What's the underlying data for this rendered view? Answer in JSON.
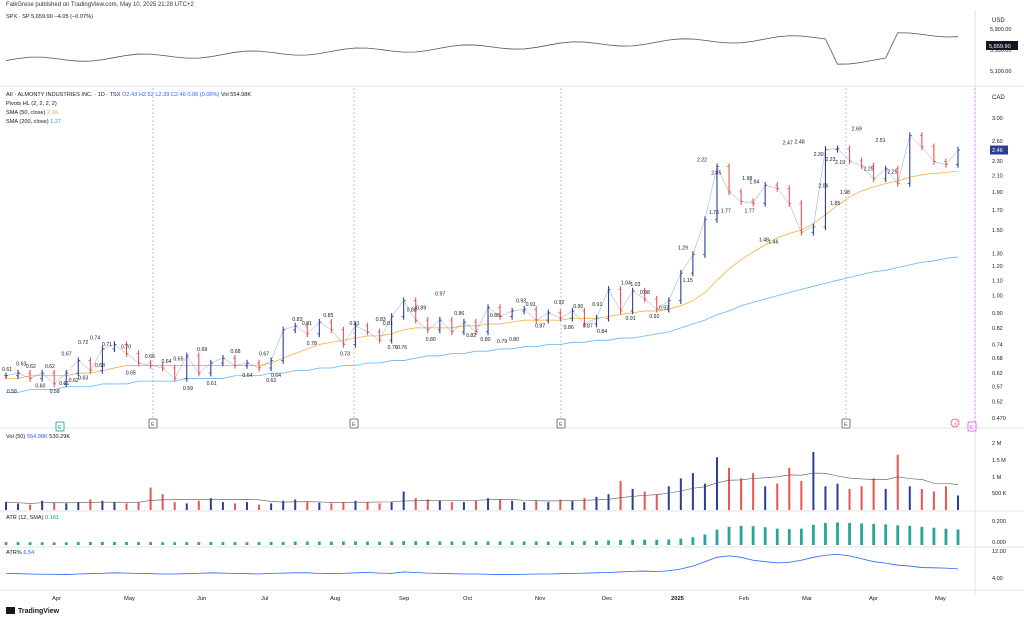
{
  "header": {
    "publisher": "FalkGrese published on TradingView.com, May 10, 2025 21:28 UTC+2"
  },
  "spx": {
    "label": "SPX · SP",
    "value": "5,659.90",
    "change": "−4.05 (−0.07%)",
    "currency": "USD",
    "y_ticks": [
      "5,900.00",
      "5,500.00",
      "5,100.00"
    ],
    "price_tag": "5,659.90"
  },
  "main": {
    "symbol": "AII · ALMONTY INDUSTRIES INC. · 1D · TSX",
    "ohlc": "O2.43  H2.52  L2.39  C2.46  0.00 (0.00%)",
    "vol": "Vol 554.98K",
    "pivots": "Pivots HL (2, 2, 2, 2)",
    "sma50": "SMA (50, close)",
    "sma50_val": "2.16",
    "sma200": "SMA (200, close)",
    "sma200_val": "1.27",
    "currency": "CAD",
    "price_tag": "2.46",
    "last": 2.46,
    "y_ticks": [
      3.0,
      2.6,
      2.3,
      2.1,
      1.9,
      1.7,
      1.5,
      1.3,
      1.2,
      1.1,
      1.0,
      0.9,
      0.82,
      0.74,
      0.68,
      0.62,
      0.57,
      0.52,
      0.47
    ],
    "y_tick_labels": [
      "3.00",
      "2.60",
      "2.30",
      "2.10",
      "1.90",
      "1.70",
      "1.50",
      "1.30",
      "1.20",
      "1.10",
      "1.00",
      "0.90",
      "0.82",
      "0.74",
      "0.68",
      "0.62",
      "0.57",
      "0.52",
      "0.470"
    ]
  },
  "chart_data": {
    "type": "line",
    "title": "AII · ALMONTY INDUSTRIES INC. · 1D · TSX",
    "x_labels": [
      "Apr",
      "May",
      "Jun",
      "Jul",
      "Aug",
      "Sep",
      "Oct",
      "Nov",
      "Dec",
      "2025",
      "Feb",
      "Mar",
      "Apr",
      "May"
    ],
    "x": [
      0,
      6,
      12,
      17,
      22,
      27,
      32,
      37,
      42,
      47,
      52,
      57,
      62,
      67,
      72,
      77,
      82,
      87,
      92,
      97,
      102,
      107,
      112,
      117,
      122,
      127,
      132,
      137,
      142,
      147,
      152,
      157,
      162,
      167,
      172,
      177,
      182,
      187,
      192,
      197,
      202,
      207,
      212,
      217,
      222,
      227,
      232,
      237,
      242,
      247,
      252,
      257,
      262,
      267,
      272,
      277,
      282,
      287,
      292,
      297,
      302,
      307,
      312,
      317,
      322,
      327,
      332,
      337,
      342,
      347,
      352,
      357,
      362,
      367,
      372,
      377,
      382,
      387,
      392,
      397
    ],
    "log_scale": true,
    "series": [
      {
        "name": "AII",
        "color": "#2a3f94",
        "values": [
          0.61,
          0.62,
          0.6,
          0.62,
          0.58,
          0.62,
          0.67,
          0.63,
          0.72,
          0.74,
          0.7,
          0.66,
          0.65,
          0.64,
          0.6,
          0.69,
          0.62,
          0.66,
          0.68,
          0.65,
          0.66,
          0.64,
          0.67,
          0.81,
          0.83,
          0.79,
          0.85,
          0.81,
          0.74,
          0.83,
          0.8,
          0.76,
          0.88,
          0.97,
          0.86,
          0.81,
          0.86,
          0.8,
          0.85,
          0.8,
          0.93,
          0.88,
          0.91,
          0.92,
          0.86,
          0.9,
          0.87,
          0.91,
          0.84,
          0.87,
          1.04,
          0.91,
          1.03,
          0.98,
          0.92,
          0.97,
          1.15,
          1.29,
          1.6,
          2.22,
          1.9,
          1.79,
          1.77,
          1.98,
          1.94,
          1.77,
          1.48,
          1.53,
          2.47,
          2.48,
          2.3,
          2.23,
          2.06,
          2.19,
          2.0,
          2.69,
          2.51,
          2.29,
          2.25,
          2.46
        ]
      },
      {
        "name": "SMA (50, close)",
        "color": "#f5a623",
        "values": [
          0.6,
          0.6,
          0.61,
          0.61,
          0.61,
          0.61,
          0.62,
          0.62,
          0.63,
          0.64,
          0.65,
          0.65,
          0.65,
          0.65,
          0.65,
          0.65,
          0.65,
          0.65,
          0.65,
          0.65,
          0.65,
          0.65,
          0.66,
          0.68,
          0.7,
          0.72,
          0.74,
          0.75,
          0.76,
          0.77,
          0.78,
          0.78,
          0.79,
          0.81,
          0.82,
          0.82,
          0.82,
          0.82,
          0.83,
          0.83,
          0.84,
          0.84,
          0.85,
          0.86,
          0.86,
          0.86,
          0.86,
          0.87,
          0.87,
          0.87,
          0.88,
          0.89,
          0.9,
          0.91,
          0.91,
          0.92,
          0.94,
          0.97,
          1.02,
          1.1,
          1.18,
          1.25,
          1.31,
          1.37,
          1.43,
          1.47,
          1.5,
          1.56,
          1.65,
          1.75,
          1.84,
          1.91,
          1.96,
          2.0,
          2.03,
          2.08,
          2.11,
          2.13,
          2.14,
          2.16
        ]
      },
      {
        "name": "SMA (200, close)",
        "color": "#64b5f6",
        "values": [
          0.55,
          0.55,
          0.56,
          0.56,
          0.56,
          0.57,
          0.57,
          0.57,
          0.58,
          0.58,
          0.58,
          0.59,
          0.59,
          0.59,
          0.59,
          0.6,
          0.6,
          0.6,
          0.6,
          0.61,
          0.61,
          0.61,
          0.62,
          0.62,
          0.63,
          0.63,
          0.64,
          0.64,
          0.65,
          0.65,
          0.66,
          0.66,
          0.67,
          0.67,
          0.68,
          0.69,
          0.69,
          0.7,
          0.7,
          0.71,
          0.71,
          0.72,
          0.72,
          0.73,
          0.73,
          0.74,
          0.74,
          0.75,
          0.75,
          0.76,
          0.76,
          0.77,
          0.77,
          0.78,
          0.79,
          0.8,
          0.82,
          0.84,
          0.86,
          0.89,
          0.91,
          0.94,
          0.96,
          0.98,
          1.0,
          1.02,
          1.04,
          1.06,
          1.08,
          1.1,
          1.12,
          1.14,
          1.16,
          1.17,
          1.19,
          1.21,
          1.23,
          1.24,
          1.26,
          1.27
        ]
      }
    ],
    "pivot_labels": [
      {
        "x": 0,
        "price": 0.61,
        "side": "above",
        "text": "0.61"
      },
      {
        "x": 2,
        "price": 0.58,
        "side": "below",
        "text": "0.58"
      },
      {
        "x": 6,
        "price": 0.63,
        "side": "above",
        "text": "0.63"
      },
      {
        "x": 10,
        "price": 0.62,
        "side": "above",
        "text": "0.62"
      },
      {
        "x": 14,
        "price": 0.6,
        "side": "below",
        "text": "0.60"
      },
      {
        "x": 18,
        "price": 0.62,
        "side": "above",
        "text": "0.62"
      },
      {
        "x": 20,
        "price": 0.58,
        "side": "below",
        "text": "0.58"
      },
      {
        "x": 25,
        "price": 0.67,
        "side": "above",
        "text": "0.67"
      },
      {
        "x": 24,
        "price": 0.61,
        "side": "below",
        "text": "0.61"
      },
      {
        "x": 28,
        "price": 0.62,
        "side": "below",
        "text": "0.62"
      },
      {
        "x": 32,
        "price": 0.72,
        "side": "above",
        "text": "0.72"
      },
      {
        "x": 32,
        "price": 0.63,
        "side": "below",
        "text": "0.63"
      },
      {
        "x": 37,
        "price": 0.74,
        "side": "above",
        "text": "0.74"
      },
      {
        "x": 39,
        "price": 0.68,
        "side": "below",
        "text": "0.68"
      },
      {
        "x": 42,
        "price": 0.71,
        "side": "above",
        "text": "0.71"
      },
      {
        "x": 50,
        "price": 0.7,
        "side": "above",
        "text": "0.70"
      },
      {
        "x": 52,
        "price": 0.65,
        "side": "below",
        "text": "0.65"
      },
      {
        "x": 60,
        "price": 0.66,
        "side": "above",
        "text": "0.66"
      },
      {
        "x": 67,
        "price": 0.64,
        "side": "above",
        "text": "0.64"
      },
      {
        "x": 72,
        "price": 0.65,
        "side": "above",
        "text": "0.65"
      },
      {
        "x": 76,
        "price": 0.59,
        "side": "below",
        "text": "0.59"
      },
      {
        "x": 82,
        "price": 0.69,
        "side": "above",
        "text": "0.69"
      },
      {
        "x": 86,
        "price": 0.61,
        "side": "below",
        "text": "0.61"
      },
      {
        "x": 96,
        "price": 0.68,
        "side": "above",
        "text": "0.68"
      },
      {
        "x": 101,
        "price": 0.64,
        "side": "below",
        "text": "0.64"
      },
      {
        "x": 108,
        "price": 0.67,
        "side": "above",
        "text": "0.67"
      },
      {
        "x": 111,
        "price": 0.62,
        "side": "below",
        "text": "0.62"
      },
      {
        "x": 113,
        "price": 0.64,
        "side": "below",
        "text": "0.64"
      },
      {
        "x": 122,
        "price": 0.83,
        "side": "above",
        "text": "0.83"
      },
      {
        "x": 126,
        "price": 0.81,
        "side": "above",
        "text": "0.81"
      },
      {
        "x": 128,
        "price": 0.78,
        "side": "below",
        "text": "0.78"
      },
      {
        "x": 135,
        "price": 0.85,
        "side": "above",
        "text": "0.85"
      },
      {
        "x": 142,
        "price": 0.73,
        "side": "below",
        "text": "0.73"
      },
      {
        "x": 146,
        "price": 0.81,
        "side": "above",
        "text": "0.81"
      },
      {
        "x": 157,
        "price": 0.83,
        "side": "above",
        "text": "0.83"
      },
      {
        "x": 160,
        "price": 0.81,
        "side": "above",
        "text": "0.81"
      },
      {
        "x": 162,
        "price": 0.76,
        "side": "below",
        "text": "0.76"
      },
      {
        "x": 166,
        "price": 0.76,
        "side": "below",
        "text": "0.76"
      },
      {
        "x": 170,
        "price": 0.88,
        "side": "above",
        "text": "0.88"
      },
      {
        "x": 174,
        "price": 0.89,
        "side": "above",
        "text": "0.89"
      },
      {
        "x": 178,
        "price": 0.8,
        "side": "below",
        "text": "0.80"
      },
      {
        "x": 182,
        "price": 0.97,
        "side": "above",
        "text": "0.97"
      },
      {
        "x": 190,
        "price": 0.86,
        "side": "above",
        "text": "0.86"
      },
      {
        "x": 195,
        "price": 0.82,
        "side": "below",
        "text": "0.82"
      },
      {
        "x": 201,
        "price": 0.8,
        "side": "below",
        "text": "0.80"
      },
      {
        "x": 205,
        "price": 0.85,
        "side": "above",
        "text": "0.85"
      },
      {
        "x": 208,
        "price": 0.79,
        "side": "below",
        "text": "0.79"
      },
      {
        "x": 213,
        "price": 0.8,
        "side": "below",
        "text": "0.80"
      },
      {
        "x": 216,
        "price": 0.93,
        "side": "above",
        "text": "0.93"
      },
      {
        "x": 220,
        "price": 0.91,
        "side": "above",
        "text": "0.91"
      },
      {
        "x": 224,
        "price": 0.87,
        "side": "below",
        "text": "0.87"
      },
      {
        "x": 232,
        "price": 0.92,
        "side": "above",
        "text": "0.92"
      },
      {
        "x": 236,
        "price": 0.86,
        "side": "below",
        "text": "0.86"
      },
      {
        "x": 240,
        "price": 0.9,
        "side": "above",
        "text": "0.90"
      },
      {
        "x": 244,
        "price": 0.87,
        "side": "below",
        "text": "0.87"
      },
      {
        "x": 248,
        "price": 0.91,
        "side": "above",
        "text": "0.91"
      },
      {
        "x": 250,
        "price": 0.84,
        "side": "below",
        "text": "0.84"
      },
      {
        "x": 260,
        "price": 1.04,
        "side": "above",
        "text": "1.04"
      },
      {
        "x": 264,
        "price": 1.03,
        "side": "above",
        "text": "1.03"
      },
      {
        "x": 262,
        "price": 0.91,
        "side": "below",
        "text": "0.91"
      },
      {
        "x": 268,
        "price": 0.98,
        "side": "above",
        "text": "0.98"
      },
      {
        "x": 272,
        "price": 0.92,
        "side": "below",
        "text": "0.92"
      },
      {
        "x": 276,
        "price": 0.97,
        "side": "below",
        "text": "0.97"
      },
      {
        "x": 286,
        "price": 1.15,
        "side": "below",
        "text": "1.15"
      },
      {
        "x": 284,
        "price": 1.29,
        "side": "above",
        "text": "1.29"
      },
      {
        "x": 292,
        "price": 2.22,
        "side": "above",
        "text": "2.22"
      },
      {
        "x": 298,
        "price": 2.05,
        "side": "above",
        "text": "2.05"
      },
      {
        "x": 297,
        "price": 1.75,
        "side": "below",
        "text": "1.75"
      },
      {
        "x": 302,
        "price": 1.77,
        "side": "below",
        "text": "1.77"
      },
      {
        "x": 311,
        "price": 1.98,
        "side": "above",
        "text": "1.98"
      },
      {
        "x": 314,
        "price": 1.94,
        "side": "above",
        "text": "1.94"
      },
      {
        "x": 312,
        "price": 1.77,
        "side": "below",
        "text": "1.77"
      },
      {
        "x": 318,
        "price": 1.48,
        "side": "below",
        "text": "1.48"
      },
      {
        "x": 322,
        "price": 1.46,
        "side": "below",
        "text": "1.46"
      },
      {
        "x": 328,
        "price": 2.47,
        "side": "above",
        "text": "2.47"
      },
      {
        "x": 333,
        "price": 2.48,
        "side": "above",
        "text": "2.48"
      },
      {
        "x": 341,
        "price": 2.3,
        "side": "above",
        "text": "2.30"
      },
      {
        "x": 346,
        "price": 2.23,
        "side": "above",
        "text": "2.23"
      },
      {
        "x": 343,
        "price": 2.06,
        "side": "below",
        "text": "2.06"
      },
      {
        "x": 350,
        "price": 2.19,
        "side": "above",
        "text": "2.19"
      },
      {
        "x": 348,
        "price": 1.85,
        "side": "below",
        "text": "1.85"
      },
      {
        "x": 352,
        "price": 1.98,
        "side": "below",
        "text": "1.98"
      },
      {
        "x": 357,
        "price": 2.69,
        "side": "above",
        "text": "2.69"
      },
      {
        "x": 367,
        "price": 2.51,
        "side": "above",
        "text": "2.51"
      },
      {
        "x": 362,
        "price": 2.29,
        "side": "below",
        "text": "2.29"
      },
      {
        "x": 372,
        "price": 2.25,
        "side": "below",
        "text": "2.25"
      }
    ]
  },
  "volume": {
    "label": "Vol (50)",
    "value": "554.98K",
    "ma": "530.29K",
    "y_ticks": [
      "2 M",
      "1.5 M",
      "1 M",
      "500 K"
    ],
    "bars": [
      0.3,
      0.25,
      0.2,
      0.35,
      0.28,
      0.25,
      0.3,
      0.4,
      0.35,
      0.3,
      0.25,
      0.3,
      0.85,
      0.6,
      0.3,
      0.25,
      0.35,
      0.45,
      0.3,
      0.25,
      0.3,
      0.2,
      0.25,
      0.35,
      0.4,
      0.3,
      0.28,
      0.25,
      0.3,
      0.35,
      0.3,
      0.25,
      0.3,
      0.7,
      0.45,
      0.4,
      0.35,
      0.3,
      0.3,
      0.35,
      0.45,
      0.4,
      0.35,
      0.3,
      0.35,
      0.3,
      0.4,
      0.35,
      0.45,
      0.5,
      0.6,
      1.1,
      0.8,
      0.7,
      0.6,
      0.9,
      1.2,
      1.4,
      1.0,
      2.0,
      1.6,
      1.2,
      1.4,
      0.9,
      1.0,
      1.6,
      1.1,
      2.2,
      0.9,
      1.0,
      0.8,
      0.9,
      1.2,
      0.8,
      2.1,
      0.9,
      0.8,
      0.7,
      0.9,
      0.55
    ]
  },
  "atr": {
    "label": "ATR (12, SMA)",
    "value": "0.161",
    "y_ticks": [
      "0.200",
      "0.000"
    ],
    "values": [
      0.03,
      0.03,
      0.029,
      0.029,
      0.028,
      0.028,
      0.03,
      0.031,
      0.032,
      0.032,
      0.031,
      0.03,
      0.03,
      0.029,
      0.029,
      0.03,
      0.03,
      0.031,
      0.03,
      0.029,
      0.029,
      0.03,
      0.031,
      0.033,
      0.035,
      0.036,
      0.036,
      0.035,
      0.036,
      0.037,
      0.036,
      0.035,
      0.036,
      0.04,
      0.04,
      0.039,
      0.038,
      0.037,
      0.037,
      0.037,
      0.038,
      0.038,
      0.037,
      0.037,
      0.037,
      0.036,
      0.037,
      0.038,
      0.04,
      0.042,
      0.048,
      0.052,
      0.055,
      0.056,
      0.054,
      0.058,
      0.066,
      0.08,
      0.11,
      0.16,
      0.19,
      0.2,
      0.196,
      0.185,
      0.17,
      0.165,
      0.17,
      0.21,
      0.23,
      0.235,
      0.23,
      0.225,
      0.22,
      0.215,
      0.205,
      0.2,
      0.19,
      0.18,
      0.17,
      0.161
    ]
  },
  "atrp": {
    "label": "ATR%",
    "value": "6.54",
    "y_ticks": [
      "12.00",
      "4.00"
    ],
    "values": [
      5.0,
      4.9,
      4.8,
      4.7,
      4.7,
      4.6,
      4.8,
      4.9,
      5.0,
      5.2,
      5.1,
      5.0,
      4.9,
      4.8,
      4.8,
      4.9,
      5.0,
      5.2,
      5.1,
      5.0,
      4.9,
      4.8,
      5.0,
      5.1,
      5.2,
      5.2,
      5.0,
      4.9,
      5.0,
      5.2,
      5.3,
      5.1,
      5.0,
      5.5,
      5.3,
      5.1,
      5.0,
      4.9,
      4.8,
      4.8,
      4.7,
      4.6,
      4.6,
      4.7,
      4.8,
      4.8,
      4.9,
      5.0,
      5.1,
      5.2,
      5.3,
      5.5,
      5.7,
      5.8,
      5.6,
      5.9,
      6.5,
      7.5,
      9.0,
      10.5,
      11.0,
      10.5,
      9.5,
      9.0,
      8.6,
      8.8,
      9.5,
      10.5,
      11.2,
      11.5,
      11.0,
      10.0,
      9.0,
      8.5,
      7.8,
      7.5,
      7.0,
      6.9,
      6.8,
      6.54
    ]
  },
  "events": {
    "dividend_marker": "E",
    "earnings_marker": "E",
    "split_marker": "⚡"
  },
  "footer": {
    "brand": "TradingView"
  }
}
